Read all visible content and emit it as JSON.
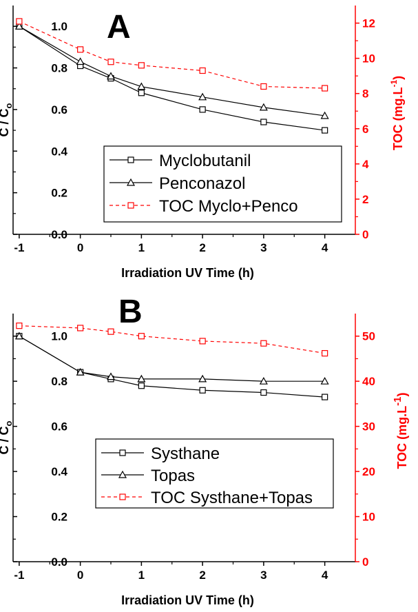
{
  "chart_data": [
    {
      "type": "line",
      "panel_label": "A",
      "xlabel": "Irradiation UV Time (h)",
      "ylabel_main": "C / C",
      "ylabel_sub": "o",
      "y2label_main": "TOC (mg.L",
      "y2label_sup": "-1",
      "y2label_end": ")",
      "x_ticks": [
        -1,
        0,
        1,
        2,
        3,
        4
      ],
      "xlim": [
        -1.1,
        4.5
      ],
      "y_ticks": [
        "0.0",
        "0.2",
        "0.4",
        "0.6",
        "0.8",
        "1.0"
      ],
      "ylim": [
        0,
        1.1
      ],
      "y2_ticks": [
        "0",
        "2",
        "4",
        "6",
        "8",
        "10",
        "12"
      ],
      "y2lim": [
        0,
        13
      ],
      "y2_color": "#ff0000",
      "legend_position": "lower-right",
      "series": [
        {
          "name": "Myclobutanil",
          "axis": "left",
          "marker": "square",
          "style": "solid",
          "color": "#000000",
          "x": [
            -1,
            0,
            0.5,
            1,
            2,
            3,
            4
          ],
          "y": [
            1.0,
            0.81,
            0.75,
            0.68,
            0.6,
            0.54,
            0.5
          ]
        },
        {
          "name": "Penconazol",
          "axis": "left",
          "marker": "triangle",
          "style": "solid",
          "color": "#000000",
          "x": [
            -1,
            0,
            0.5,
            1,
            2,
            3,
            4
          ],
          "y": [
            1.0,
            0.83,
            0.76,
            0.71,
            0.66,
            0.61,
            0.57
          ]
        },
        {
          "name": "TOC Myclo+Penco",
          "axis": "right",
          "marker": "square",
          "style": "dashed",
          "color": "#ff0000",
          "x": [
            -1,
            0,
            0.5,
            1,
            2,
            3,
            4
          ],
          "y": [
            12.1,
            10.5,
            9.8,
            9.6,
            9.3,
            8.4,
            8.3
          ]
        }
      ]
    },
    {
      "type": "line",
      "panel_label": "B",
      "xlabel": "Irradiation UV Time (h)",
      "ylabel_main": "C / C",
      "ylabel_sub": "o",
      "y2label_main": "TOC (mg.L",
      "y2label_sup": "-1",
      "y2label_end": ")",
      "x_ticks": [
        -1,
        0,
        1,
        2,
        3,
        4
      ],
      "xlim": [
        -1.1,
        4.5
      ],
      "y_ticks": [
        "0.0",
        "0.2",
        "0.4",
        "0.6",
        "0.8",
        "1.0"
      ],
      "ylim": [
        0,
        1.1
      ],
      "y2_ticks": [
        "0",
        "10",
        "20",
        "30",
        "40",
        "50"
      ],
      "y2lim": [
        0,
        55
      ],
      "y2_color": "#ff0000",
      "legend_position": "lower-right",
      "series": [
        {
          "name": "Systhane",
          "axis": "left",
          "marker": "square",
          "style": "solid",
          "color": "#000000",
          "x": [
            -1,
            0,
            0.5,
            1,
            2,
            3,
            4
          ],
          "y": [
            1.0,
            0.84,
            0.81,
            0.78,
            0.76,
            0.75,
            0.73
          ]
        },
        {
          "name": "Topas",
          "axis": "left",
          "marker": "triangle",
          "style": "solid",
          "color": "#000000",
          "x": [
            -1,
            0,
            0.5,
            1,
            2,
            3,
            4
          ],
          "y": [
            1.0,
            0.84,
            0.82,
            0.81,
            0.81,
            0.8,
            0.8
          ]
        },
        {
          "name": "TOC Systhane+Topas",
          "axis": "right",
          "marker": "square",
          "style": "dashed",
          "color": "#ff0000",
          "x": [
            -1,
            0,
            0.5,
            1,
            2,
            3,
            4
          ],
          "y": [
            52.3,
            51.8,
            51.0,
            50.0,
            48.9,
            48.4,
            46.2
          ]
        }
      ]
    }
  ]
}
